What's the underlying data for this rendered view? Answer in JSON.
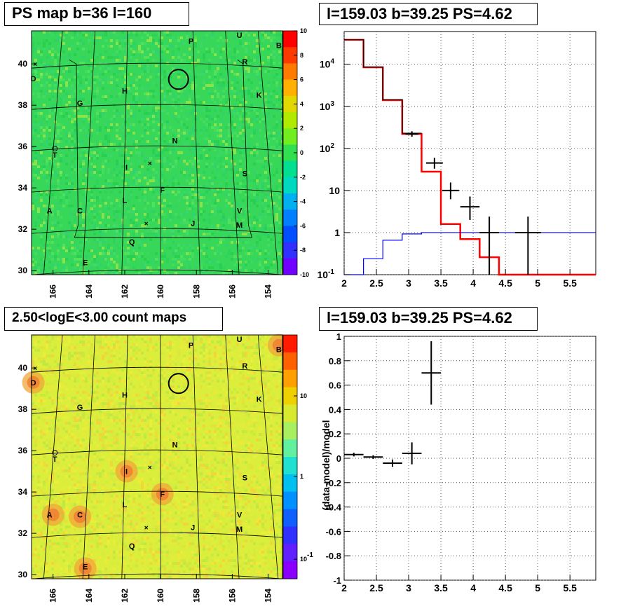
{
  "titles": {
    "map_top": "PS map b=36 l=160",
    "spec_top": "l=159.03 b=39.25 PS=4.62",
    "map_bottom": "2.50<logE<3.00 count maps",
    "spec_bottom": "l=159.03 b=39.25 PS=4.62"
  },
  "chart_data": [
    {
      "type": "heatmap",
      "title": "PS map b=36 l=160",
      "x_ticks": [
        166,
        164,
        162,
        160,
        158,
        156,
        154
      ],
      "y_ticks": [
        30,
        32,
        34,
        36,
        38,
        40
      ],
      "xlim": [
        167.2,
        153.2
      ],
      "ylim": [
        29.8,
        41.6
      ],
      "colorbar_ticks": [
        "10",
        "8",
        "6",
        "4",
        "2",
        "0",
        "-2",
        "-4",
        "-6",
        "-8",
        "-10"
      ],
      "colorbar_range": [
        -10,
        10
      ],
      "colors": {
        "background": "#37d85a"
      },
      "source_labels": [
        {
          "text": "P",
          "l": 158.3,
          "b": 41.1
        },
        {
          "text": "U",
          "l": 155.6,
          "b": 41.4
        },
        {
          "text": "B",
          "l": 153.4,
          "b": 40.9
        },
        {
          "text": "R",
          "l": 155.3,
          "b": 40.1
        },
        {
          "text": "D",
          "l": 167.1,
          "b": 39.3
        },
        {
          "text": "H",
          "l": 162.0,
          "b": 38.7
        },
        {
          "text": "K",
          "l": 154.5,
          "b": 38.5
        },
        {
          "text": "G",
          "l": 164.5,
          "b": 38.1
        },
        {
          "text": "N",
          "l": 159.2,
          "b": 36.3
        },
        {
          "text": "T",
          "l": 165.9,
          "b": 35.6
        },
        {
          "text": "I",
          "l": 161.9,
          "b": 35.0
        },
        {
          "text": "S",
          "l": 155.3,
          "b": 34.7
        },
        {
          "text": "F",
          "l": 159.9,
          "b": 33.9
        },
        {
          "text": "L",
          "l": 162.0,
          "b": 33.4
        },
        {
          "text": "A",
          "l": 166.2,
          "b": 32.9
        },
        {
          "text": "C",
          "l": 164.5,
          "b": 32.9
        },
        {
          "text": "V",
          "l": 155.6,
          "b": 32.9
        },
        {
          "text": "J",
          "l": 158.2,
          "b": 32.3
        },
        {
          "text": "M",
          "l": 155.6,
          "b": 32.2
        },
        {
          "text": "Q",
          "l": 161.6,
          "b": 31.4
        },
        {
          "text": "E",
          "l": 164.2,
          "b": 30.4
        }
      ]
    },
    {
      "type": "line",
      "title": "l=159.03 b=39.25 PS=4.62",
      "xlim": [
        2.0,
        5.9
      ],
      "ylim": [
        0.1,
        60000
      ],
      "yscale": "log",
      "x_ticks": [
        "2",
        "2.5",
        "3",
        "3.5",
        "4",
        "4.5",
        "5",
        "5.5"
      ],
      "y_ticks": [
        "10^-1",
        "1",
        "10",
        "10^2",
        "10^3",
        "10^4"
      ],
      "grid": true,
      "series": [
        {
          "color": "#ff0000",
          "style": "step",
          "edges": [
            2.0,
            2.3,
            2.6,
            2.9,
            3.2,
            3.5,
            3.8,
            4.1,
            4.4,
            4.7,
            5.0,
            5.3,
            5.6,
            5.9
          ],
          "values": [
            38000,
            8500,
            1400,
            220,
            28,
            1.6,
            0.7,
            0.26,
            0.1,
            0.1,
            0.1,
            0.1,
            0.1
          ]
        },
        {
          "color": "#0000ff",
          "style": "step",
          "edges": [
            2.0,
            2.3,
            2.6,
            2.9,
            3.2,
            3.5,
            3.8,
            4.1,
            4.4,
            4.7,
            5.0,
            5.3,
            5.6,
            5.9
          ],
          "values": [
            0.1,
            0.24,
            0.66,
            0.93,
            1.0,
            1.0,
            1.0,
            1.0,
            1.0,
            1.0,
            1.0,
            1.0,
            1.0
          ]
        },
        {
          "color": "#000000",
          "style": "step",
          "edges": [
            2.0,
            2.3,
            2.6,
            2.9,
            3.2
          ],
          "values": [
            38500,
            8600,
            1450,
            230
          ]
        },
        {
          "color": "#000000",
          "style": "errorbar",
          "points": [
            {
              "x": 3.05,
              "y": 220,
              "xerr": 0.1,
              "ylo": 190,
              "yhi": 255
            },
            {
              "x": 3.4,
              "y": 45,
              "xerr": 0.13,
              "ylo": 33,
              "yhi": 60
            },
            {
              "x": 3.65,
              "y": 10,
              "xerr": 0.13,
              "ylo": 6.2,
              "yhi": 15.5
            },
            {
              "x": 3.95,
              "y": 4.1,
              "xerr": 0.15,
              "ylo": 2.0,
              "yhi": 7.2
            },
            {
              "x": 4.25,
              "y": 1.0,
              "xerr": 0.15,
              "ylo": 0.1,
              "yhi": 2.4
            },
            {
              "x": 4.85,
              "y": 1.0,
              "xerr": 0.2,
              "ylo": 0.1,
              "yhi": 2.4
            }
          ]
        }
      ]
    },
    {
      "type": "heatmap",
      "title": "2.50<logE<3.00 count maps",
      "x_ticks": [
        166,
        164,
        162,
        160,
        158,
        156,
        154
      ],
      "y_ticks": [
        30,
        32,
        34,
        36,
        38,
        40
      ],
      "xlim": [
        167.2,
        153.2
      ],
      "ylim": [
        29.8,
        41.6
      ],
      "colorbar_ticks": [
        "10",
        "1",
        "10^-1"
      ],
      "colorbar_scale": "log",
      "colors": {
        "background": "#dcee3c"
      },
      "bright_spots": [
        {
          "l": 166.0,
          "b": 32.9
        },
        {
          "l": 164.5,
          "b": 32.8
        },
        {
          "l": 153.4,
          "b": 41.1
        },
        {
          "l": 167.1,
          "b": 39.3
        },
        {
          "l": 164.2,
          "b": 30.3
        },
        {
          "l": 161.9,
          "b": 35.0
        },
        {
          "l": 159.9,
          "b": 33.9
        }
      ]
    },
    {
      "type": "scatter",
      "title": "l=159.03 b=39.25 PS=4.62",
      "ylabel": "(data-model)/model",
      "xlim": [
        2.0,
        5.9
      ],
      "ylim": [
        -1.0,
        1.0
      ],
      "x_ticks": [
        "2",
        "2.5",
        "3",
        "3.5",
        "4",
        "4.5",
        "5",
        "5.5"
      ],
      "y_ticks": [
        "1",
        "0.8",
        "0.6",
        "0.4",
        "0.2",
        "0",
        "-0.2",
        "-0.4",
        "-0.6",
        "-0.8",
        "-1"
      ],
      "grid": true,
      "points": [
        {
          "x": 2.15,
          "y": 0.03,
          "xerr": 0.15,
          "yerr": 0.015
        },
        {
          "x": 2.45,
          "y": 0.01,
          "xerr": 0.15,
          "yerr": 0.015
        },
        {
          "x": 2.75,
          "y": -0.04,
          "xerr": 0.15,
          "yerr": 0.03
        },
        {
          "x": 3.05,
          "y": 0.04,
          "xerr": 0.15,
          "yerr": 0.09
        },
        {
          "x": 3.35,
          "y": 0.7,
          "xerr": 0.15,
          "yerr": 0.26
        }
      ]
    }
  ]
}
